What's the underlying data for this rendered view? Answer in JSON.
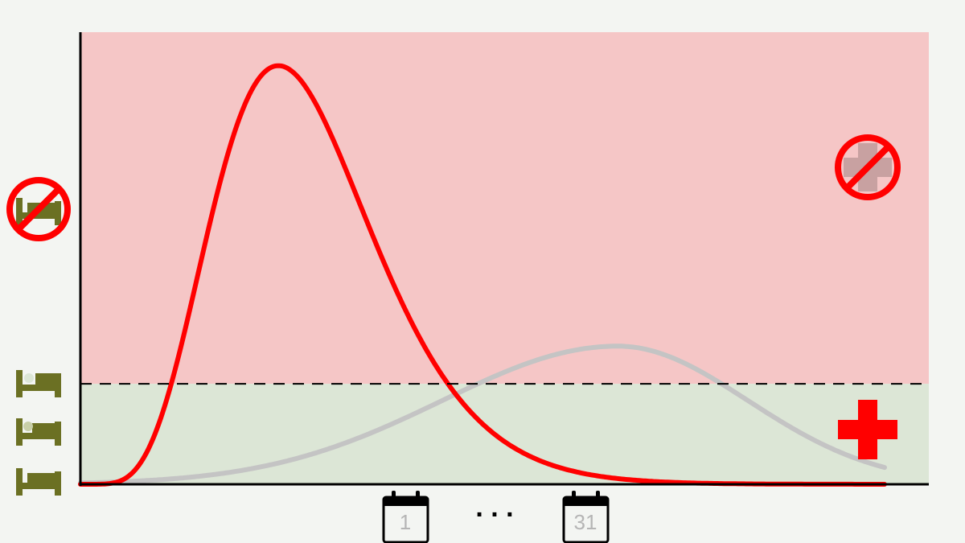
{
  "colors": {
    "background": "#f3f5f2",
    "overload_zone": "#f5c6c6",
    "capacity_zone": "#dce6d6",
    "uncontrolled_curve": "#ff0000",
    "flattened_curve": "#c4c4c4",
    "capacity_line": "#000000",
    "bed_icon": "#6b7023",
    "medical_cross": "#ff0000",
    "no_symbol": "#ff0000"
  },
  "icons": {
    "bed_full": "bed-with-patient-icon",
    "bed_empty": "empty-bed-icon",
    "no_beds": "no-beds-icon",
    "care_available": "red-cross-icon",
    "no_care": "no-care-icon",
    "calendar": "calendar-icon"
  },
  "chart_data": {
    "type": "line",
    "series": [
      {
        "peak_day": 8,
        "peak_value": 100
      },
      {
        "peak_day": 20,
        "peak_value": 33
      }
    ],
    "capacity_level": 24,
    "xlim": [
      1,
      31
    ],
    "ylim": [
      0,
      108
    ]
  },
  "axis": {
    "start_day_label": "1",
    "end_day_label": "31",
    "ellipsis": ". . ."
  }
}
